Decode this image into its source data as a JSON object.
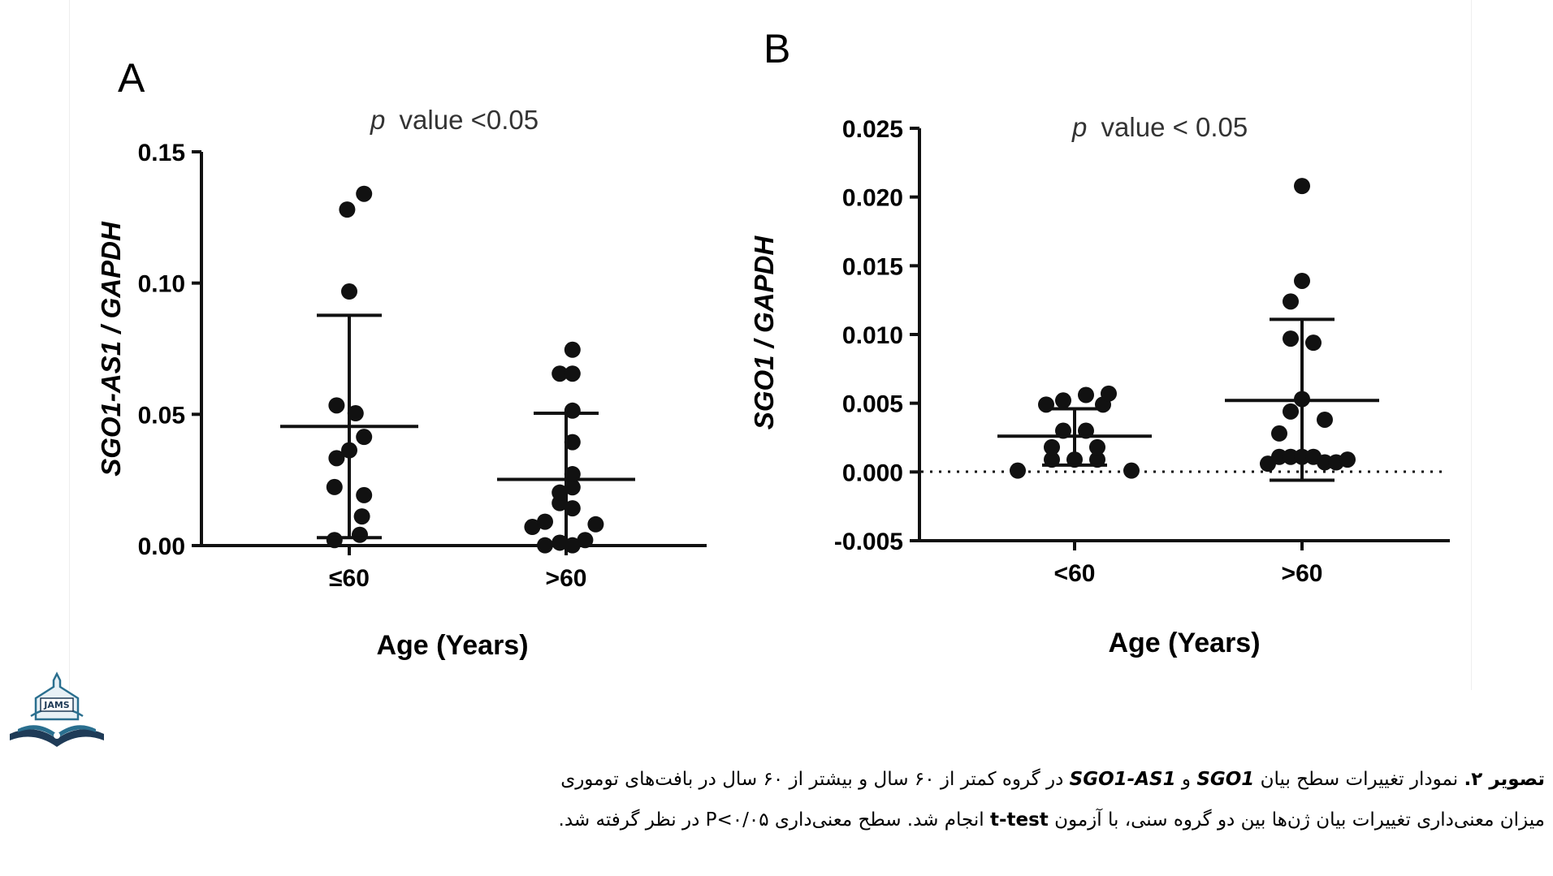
{
  "chart_data": [
    {
      "type": "scatter",
      "panel_label": "A",
      "annotation": "value  <0.05",
      "annotation_italic": "p",
      "ylabel": "SGO1-AS1 / GAPDH",
      "xlabel": "Age (Years)",
      "ylim": [
        0,
        0.15
      ],
      "yticks": [
        0.0,
        0.05,
        0.1,
        0.15
      ],
      "ytick_labels": [
        "0.00",
        "0.05",
        "0.10",
        "0.15"
      ],
      "categories": [
        "≤60",
        ">60"
      ],
      "series": [
        {
          "category": "≤60",
          "points": [
            [
              -0.14,
              0.0021
            ],
            [
              0.1,
              0.0041
            ],
            [
              0.12,
              0.0111
            ],
            [
              0.14,
              0.0192
            ],
            [
              -0.14,
              0.0223
            ],
            [
              -0.12,
              0.0333
            ],
            [
              0,
              0.0363
            ],
            [
              0.14,
              0.0414
            ],
            [
              0.06,
              0.0504
            ],
            [
              -0.12,
              0.0534
            ],
            [
              0,
              0.0968
            ],
            [
              -0.02,
              0.128
            ],
            [
              0.14,
              0.134
            ]
          ],
          "mean": 0.0454,
          "sd_upper": 0.0877,
          "sd_lower": 0.003
        },
        {
          "category": ">60",
          "points": [
            [
              -0.32,
              0.0071
            ],
            [
              -0.2,
              0.0001
            ],
            [
              -0.2,
              0.0091
            ],
            [
              -0.06,
              0.0011
            ],
            [
              0.06,
              0.0001
            ],
            [
              0.18,
              0.0021
            ],
            [
              -0.06,
              0.0162
            ],
            [
              0.06,
              0.0142
            ],
            [
              0.28,
              0.0081
            ],
            [
              -0.06,
              0.0202
            ],
            [
              0.06,
              0.0222
            ],
            [
              0.06,
              0.0272
            ],
            [
              0.06,
              0.0394
            ],
            [
              0.06,
              0.0514
            ],
            [
              -0.06,
              0.0655
            ],
            [
              0.06,
              0.0655
            ],
            [
              0.06,
              0.0746
            ]
          ],
          "mean": 0.0252,
          "sd_upper": 0.0504,
          "sd_lower": 0.0
        }
      ]
    },
    {
      "type": "scatter",
      "panel_label": "B",
      "annotation": "value < 0.05",
      "annotation_italic": "p",
      "ylabel": "SGO1 / GAPDH",
      "xlabel": "Age (Years)",
      "ylim": [
        -0.005,
        0.025
      ],
      "yticks": [
        -0.005,
        0.0,
        0.005,
        0.01,
        0.015,
        0.02,
        0.025
      ],
      "ytick_labels": [
        "-0.005",
        "0.000",
        "0.005",
        "0.010",
        "0.015",
        "0.020",
        "0.025"
      ],
      "categories": [
        "<60",
        ">60"
      ],
      "reference_line": 0.0,
      "series": [
        {
          "category": "<60",
          "points": [
            [
              -0.5,
              0.0001
            ],
            [
              -0.2,
              0.0009
            ],
            [
              0,
              0.0009
            ],
            [
              0.2,
              0.0009
            ],
            [
              0.5,
              0.0001
            ],
            [
              -0.2,
              0.0018
            ],
            [
              0.2,
              0.0018
            ],
            [
              -0.1,
              0.003
            ],
            [
              0.1,
              0.003
            ],
            [
              -0.25,
              0.0049
            ],
            [
              0.25,
              0.0049
            ],
            [
              -0.1,
              0.0052
            ],
            [
              0.1,
              0.0056
            ],
            [
              0.3,
              0.0057
            ]
          ],
          "mean": 0.0026,
          "sd_upper": 0.0046,
          "sd_lower": 0.0005
        },
        {
          "category": ">60",
          "points": [
            [
              -0.3,
              0.0006
            ],
            [
              -0.2,
              0.0011
            ],
            [
              -0.1,
              0.0011
            ],
            [
              0,
              0.0011
            ],
            [
              0.1,
              0.0011
            ],
            [
              0.2,
              0.0007
            ],
            [
              0.3,
              0.0007
            ],
            [
              0.4,
              0.0009
            ],
            [
              -0.2,
              0.0028
            ],
            [
              0.2,
              0.0038
            ],
            [
              -0.1,
              0.0044
            ],
            [
              0,
              0.0053
            ],
            [
              -0.1,
              0.0097
            ],
            [
              0.1,
              0.0094
            ],
            [
              -0.1,
              0.0124
            ],
            [
              0,
              0.0139
            ],
            [
              0,
              0.0208
            ]
          ],
          "mean": 0.0052,
          "sd_upper": 0.0111,
          "sd_lower": -0.0006
        }
      ]
    }
  ],
  "logo": {
    "text": "JAMS"
  },
  "caption": {
    "line1": {
      "label": "تصویر ۲.",
      "t1": " نمودار تغییرات سطح بیان ",
      "gene1": "SGO1",
      "t2": " و ",
      "gene2": "SGO1-AS1",
      "t3": " در گروه کمتر از ۶۰ سال و بیشتر از ۶۰ سال در بافت‌های توموری"
    },
    "line2": {
      "t1": "میزان معنی‌داری تغییرات بیان ژن‌ها بین دو گروه سنی، با آزمون ",
      "test": "t-test",
      "t2": " انجام شد. سطح معنی‌داری ",
      "pval": "P<۰/۰۵",
      "t3": " در نظر گرفته شد."
    }
  },
  "colors": {
    "ink": "#111111",
    "logo_blue": "#2a6f8f",
    "logo_dark": "#1f3b57"
  }
}
